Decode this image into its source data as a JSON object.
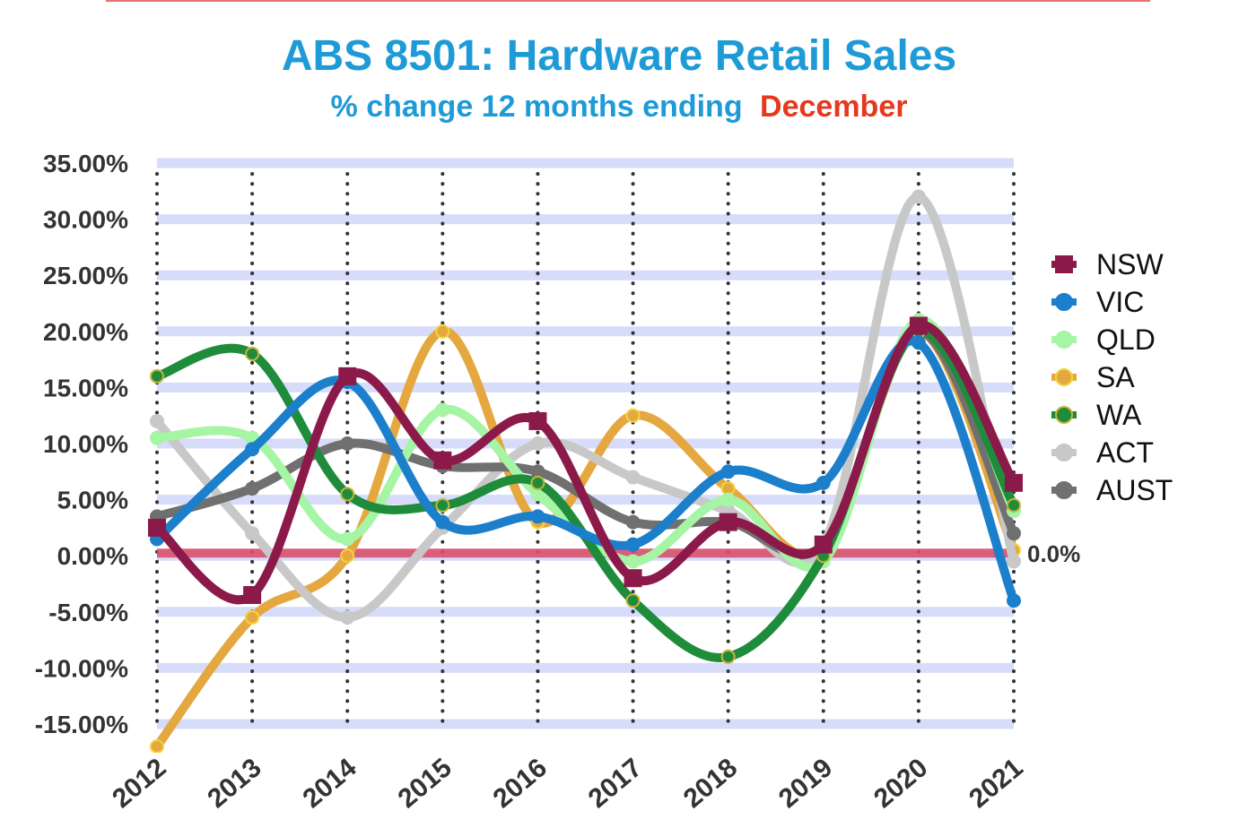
{
  "chart_data": {
    "type": "line",
    "title": "ABS 8501: Hardware Retail Sales",
    "subtitle_prefix": "% change 12 months ending",
    "subtitle_highlight": "December",
    "categories": [
      "2012",
      "2013",
      "2014",
      "2015",
      "2016",
      "2017",
      "2018",
      "2019",
      "2020",
      "2021"
    ],
    "y_ticks": [
      "35.00%",
      "30.00%",
      "25.00%",
      "20.00%",
      "15.00%",
      "10.00%",
      "5.00%",
      "0.00%",
      "-5.00%",
      "-10.00%",
      "-15.00%"
    ],
    "ylim": [
      -15,
      35
    ],
    "zero_line_label": "0.0%",
    "grid": true,
    "legend_position": "right",
    "series": [
      {
        "name": "NSW",
        "color": "#8B1A4A",
        "marker": "square",
        "values": [
          2.5,
          -3.5,
          16.0,
          8.5,
          12.0,
          -2.0,
          3.0,
          1.0,
          20.5,
          6.5
        ]
      },
      {
        "name": "VIC",
        "color": "#1B7FCC",
        "marker": "circle",
        "values": [
          1.5,
          9.5,
          15.5,
          3.0,
          3.5,
          1.0,
          7.5,
          6.5,
          19.0,
          -4.0
        ]
      },
      {
        "name": "QLD",
        "color": "#A5F5A5",
        "marker": "circle",
        "values": [
          10.5,
          10.5,
          1.5,
          13.0,
          5.5,
          -0.5,
          5.0,
          -0.5,
          21.0,
          4.0
        ]
      },
      {
        "name": "SA",
        "color": "#E5A840",
        "marker": "circle",
        "values": [
          -17.0,
          -5.5,
          0.0,
          20.0,
          3.0,
          12.5,
          6.0,
          0.5,
          20.0,
          0.5
        ]
      },
      {
        "name": "WA",
        "color": "#1E8C3A",
        "marker": "circle",
        "values": [
          16.0,
          18.0,
          5.5,
          4.5,
          6.5,
          -4.0,
          -9.0,
          0.0,
          20.0,
          4.5
        ]
      },
      {
        "name": "ACT",
        "color": "#C8C8C8",
        "marker": "circle",
        "values": [
          12.0,
          2.0,
          -5.5,
          2.5,
          10.0,
          7.0,
          4.0,
          1.0,
          32.0,
          -0.5
        ]
      },
      {
        "name": "AUST",
        "color": "#707070",
        "marker": "circle",
        "values": [
          3.5,
          6.0,
          10.0,
          8.0,
          7.5,
          3.0,
          3.0,
          1.0,
          20.0,
          2.0
        ]
      }
    ]
  }
}
